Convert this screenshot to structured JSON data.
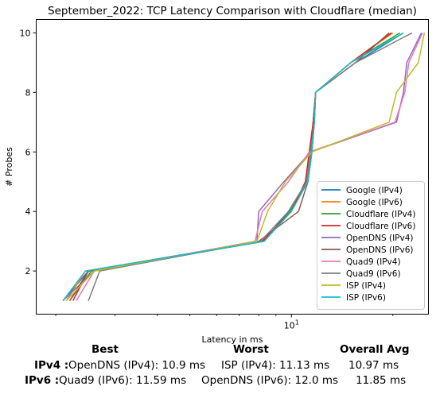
{
  "chart_data": {
    "type": "line",
    "title": "September_2022: TCP Latency Comparison with Cloudflare (median)",
    "xlabel": "Latency in ms",
    "ylabel": "# Probes",
    "xscale": "log",
    "xlim": [
      1.75,
      25.5
    ],
    "ylim": [
      0.55,
      10.45
    ],
    "yticks": [
      2,
      4,
      6,
      8,
      10
    ],
    "xtick_label": "10",
    "xtick_value": 10,
    "grid": false,
    "legend_position": "lower-right",
    "series": [
      {
        "name": "Google (IPv4)",
        "color": "#1f77b4",
        "points": [
          [
            2.1,
            1
          ],
          [
            2.5,
            2
          ],
          [
            8.3,
            3
          ],
          [
            9.8,
            4
          ],
          [
            11.2,
            5
          ],
          [
            11.5,
            6
          ],
          [
            11.7,
            7
          ],
          [
            11.8,
            8
          ],
          [
            15.5,
            9
          ],
          [
            21.5,
            10
          ]
        ]
      },
      {
        "name": "Google (IPv6)",
        "color": "#ff7f0e",
        "points": [
          [
            2.15,
            1
          ],
          [
            2.45,
            2
          ],
          [
            8.2,
            3
          ],
          [
            10,
            4
          ],
          [
            11,
            5
          ],
          [
            11.4,
            6
          ],
          [
            11.6,
            7
          ],
          [
            11.8,
            8
          ],
          [
            15,
            9
          ],
          [
            20,
            10
          ]
        ]
      },
      {
        "name": "Cloudflare (IPv4)",
        "color": "#2ca02c",
        "points": [
          [
            2.2,
            1
          ],
          [
            2.55,
            2
          ],
          [
            8.3,
            3
          ],
          [
            9.9,
            4
          ],
          [
            11.1,
            5
          ],
          [
            11.4,
            6
          ],
          [
            11.6,
            7
          ],
          [
            11.8,
            8
          ],
          [
            15,
            9
          ],
          [
            21,
            10
          ]
        ]
      },
      {
        "name": "Cloudflare (IPv6)",
        "color": "#d62728",
        "points": [
          [
            2.25,
            1
          ],
          [
            2.5,
            2
          ],
          [
            8.2,
            3
          ],
          [
            10,
            4
          ],
          [
            11,
            5
          ],
          [
            11.3,
            6
          ],
          [
            11.6,
            7
          ],
          [
            11.8,
            8
          ],
          [
            15,
            9
          ],
          [
            19.8,
            10
          ]
        ]
      },
      {
        "name": "OpenDNS (IPv4)",
        "color": "#9467bd",
        "points": [
          [
            2.1,
            1
          ],
          [
            2.6,
            2
          ],
          [
            7.9,
            3
          ],
          [
            8,
            4
          ],
          [
            9.5,
            5
          ],
          [
            11.4,
            6
          ],
          [
            20.5,
            7
          ],
          [
            21.5,
            8
          ],
          [
            22,
            9
          ],
          [
            24.3,
            10
          ]
        ]
      },
      {
        "name": "OpenDNS (IPv6)",
        "color": "#8c564b",
        "points": [
          [
            2.2,
            1
          ],
          [
            2.5,
            2
          ],
          [
            8,
            3
          ],
          [
            10.5,
            4
          ],
          [
            11.2,
            5
          ],
          [
            11.5,
            6
          ],
          [
            11.7,
            7
          ],
          [
            11.8,
            8
          ],
          [
            15.5,
            9
          ],
          [
            19.5,
            10
          ]
        ]
      },
      {
        "name": "Quad9 (IPv4)",
        "color": "#e377c2",
        "points": [
          [
            2.3,
            1
          ],
          [
            2.6,
            2
          ],
          [
            7.8,
            3
          ],
          [
            8.2,
            4
          ],
          [
            9.8,
            5
          ],
          [
            11.3,
            6
          ],
          [
            20.3,
            7
          ],
          [
            21.7,
            8
          ],
          [
            22.3,
            9
          ],
          [
            24.5,
            10
          ]
        ]
      },
      {
        "name": "Quad9 (IPv6)",
        "color": "#7f7f7f",
        "points": [
          [
            2.5,
            1
          ],
          [
            2.7,
            2
          ],
          [
            8.1,
            3
          ],
          [
            9.8,
            4
          ],
          [
            11.1,
            5
          ],
          [
            11.4,
            6
          ],
          [
            11.7,
            7
          ],
          [
            11.8,
            8
          ],
          [
            15.5,
            9
          ],
          [
            22.8,
            10
          ]
        ]
      },
      {
        "name": "ISP (IPv4)",
        "color": "#bcbd22",
        "points": [
          [
            2.15,
            1
          ],
          [
            2.6,
            2
          ],
          [
            7.9,
            3
          ],
          [
            8.5,
            4
          ],
          [
            9.6,
            5
          ],
          [
            11.5,
            6
          ],
          [
            19.5,
            7
          ],
          [
            20.5,
            8
          ],
          [
            23.8,
            9
          ],
          [
            24.8,
            10
          ]
        ]
      },
      {
        "name": "ISP (IPv6)",
        "color": "#17becf",
        "points": [
          [
            2.1,
            1
          ],
          [
            2.45,
            2
          ],
          [
            8.3,
            3
          ],
          [
            10,
            4
          ],
          [
            11.2,
            5
          ],
          [
            11.5,
            6
          ],
          [
            11.7,
            7
          ],
          [
            11.8,
            8
          ],
          [
            15,
            9
          ],
          [
            21.5,
            10
          ]
        ]
      }
    ]
  },
  "summary": {
    "headers": [
      "Best",
      "Worst",
      "Overall Avg"
    ],
    "rows": [
      {
        "label": "IPv4 :",
        "best": "OpenDNS (IPv4): 10.9 ms",
        "worst": "ISP (IPv4): 11.13 ms",
        "avg": "10.97 ms"
      },
      {
        "label": "IPv6 :",
        "best": "Quad9 (IPv6): 11.59 ms",
        "worst": "OpenDNS (IPv6): 12.0 ms",
        "avg": "11.85 ms"
      }
    ]
  }
}
